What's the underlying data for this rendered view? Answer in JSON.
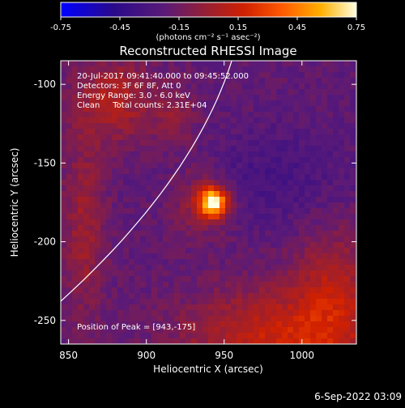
{
  "chart_data": {
    "type": "heatmap",
    "title": "Reconstructed RHESSI Image",
    "xlabel": "Heliocentric X (arcsec)",
    "ylabel": "Heliocentric Y (arcsec)",
    "xlim": [
      845,
      1035
    ],
    "ylim": [
      -265,
      -85
    ],
    "xticks": [
      "850",
      "900",
      "950",
      "1000"
    ],
    "xtick_values": [
      850,
      900,
      950,
      1000
    ],
    "yticks": [
      "-100",
      "-150",
      "-200",
      "-250"
    ],
    "ytick_values": [
      -100,
      -150,
      -200,
      -250
    ],
    "colorbar": {
      "min": -0.75,
      "max": 0.75,
      "ticks": [
        "-0.75",
        "-0.45",
        "-0.15",
        "0.15",
        "0.45",
        "0.75"
      ],
      "tick_values": [
        -0.75,
        -0.45,
        -0.15,
        0.15,
        0.45,
        0.75
      ],
      "units": "(photons cm⁻² s⁻¹ asec⁻²)"
    },
    "annotations": [
      "20-Jul-2017 09:41:40.000 to 09:45:52.000",
      "Detectors: 3F 6F 8F, Att 0",
      "Energy Range: 3.0 - 6.0 keV",
      "Clean     Total counts: 2.31E+04"
    ],
    "peak_label": "Position of Peak = [943,-175]",
    "peak": [
      943,
      -175
    ],
    "footer_date": "6-Sep-2022 03:09"
  },
  "colors": {
    "background": "#000000",
    "text": "#ffffff",
    "limb": "#ffffff"
  }
}
